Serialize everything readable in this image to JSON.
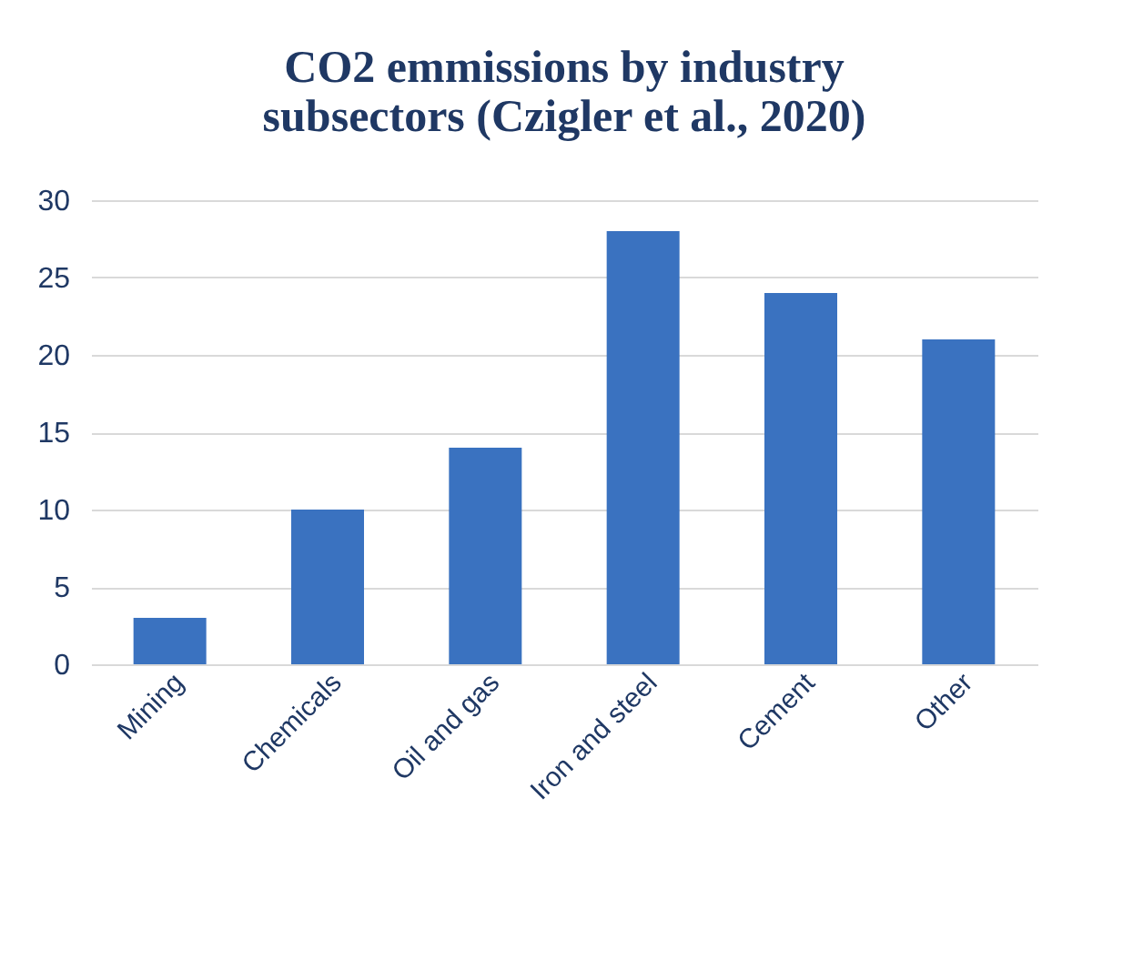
{
  "chart_data": {
    "type": "bar",
    "title": "CO2 emmissions by industry subsectors (Czigler  et al., 2020)",
    "categories": [
      "Mining",
      "Chemicals",
      "Oil and gas",
      "Iron and steel",
      "Cement",
      "Other"
    ],
    "values": [
      3,
      10,
      14,
      28,
      24,
      21
    ],
    "color": "#3a72c0",
    "ylim": [
      0,
      30
    ],
    "yticks": [
      0,
      5,
      10,
      15,
      20,
      25,
      30
    ],
    "grid": "y"
  }
}
